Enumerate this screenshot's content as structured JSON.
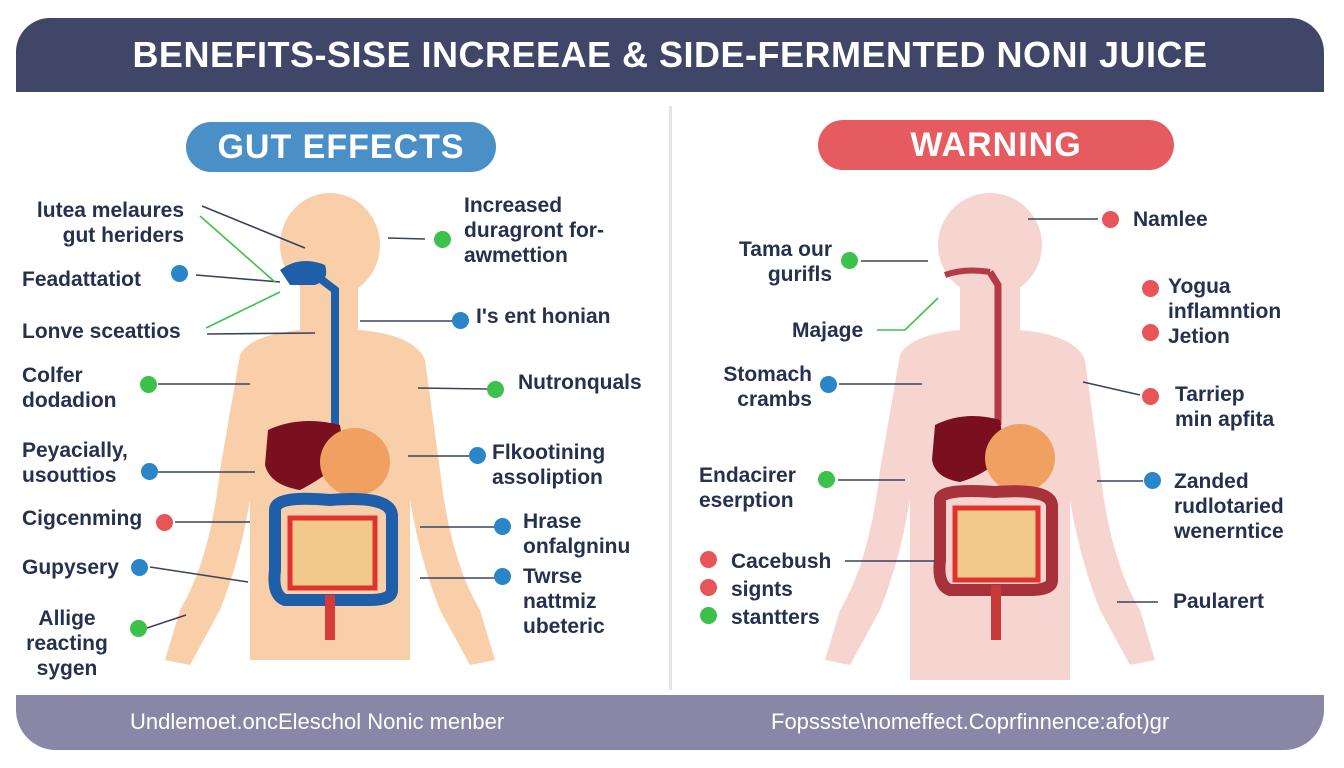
{
  "title": "BENEFITS-SISE INCREEAE & SIDE-FERMENTED NONI JUICE",
  "colors": {
    "title_bar": "#3f4668",
    "gut_pill": "#4a8fc6",
    "warning_pill": "#e55b5f",
    "footer": "#8a87a6",
    "badge_green": "#3cc24a",
    "badge_blue": "#2a86c8",
    "badge_red": "#e85558",
    "text": "#26304f"
  },
  "left_panel": {
    "heading": "GUT EFFECTS",
    "labels": [
      {
        "text": "lutea melaures\ngut heriders",
        "badge": ""
      },
      {
        "text": "Feadattatiot",
        "badge": "blue"
      },
      {
        "text": "Lonve sceattios",
        "badge": ""
      },
      {
        "text": "Colfer\ndodadion",
        "badge": "green"
      },
      {
        "text": "Peyacially,\nusouttios",
        "badge": "blue"
      },
      {
        "text": "Cigcenming",
        "badge": "red"
      },
      {
        "text": "Gupysery",
        "badge": "blue"
      },
      {
        "text": "Allige\nreacting\nsygen",
        "badge": "green"
      },
      {
        "text": "Increased\nduragront for-\nawmettion",
        "badge": "green"
      },
      {
        "text": "I's ent honian",
        "badge": "blue"
      },
      {
        "text": "Nutronquals",
        "badge": "green"
      },
      {
        "text": "Flkootining\nassoliption",
        "badge": "blue"
      },
      {
        "text": "Hrase\nonfalgninu",
        "badge": "blue"
      },
      {
        "text": "Twrse\nnattmiz\nubeteric",
        "badge": "blue"
      }
    ]
  },
  "right_panel": {
    "heading": "WARNING",
    "labels": [
      {
        "text": "Namlee",
        "badge": "red"
      },
      {
        "text": "Tama our\ngurifls",
        "badge": "green"
      },
      {
        "text": "Majage",
        "badge": ""
      },
      {
        "text": "Yogua\ninflamntion\nJetion",
        "badge": "red"
      },
      {
        "text": "Stomach\ncrambs",
        "badge": "blue"
      },
      {
        "text": "Tarriep\nmin apfita",
        "badge": "red"
      },
      {
        "text": "Endacirer\neserption",
        "badge": "green"
      },
      {
        "text": "Zanded\nrudlotaried\nwenerntice",
        "badge": "blue"
      },
      {
        "text": "Cacebush\nsignts\nstantters",
        "badge": "red"
      },
      {
        "text": "Paularert",
        "badge": ""
      }
    ]
  },
  "footer": {
    "left": "Undlemoet.oncEleschol Nonic menber",
    "right": "Fopssste\\nomeffect.Coprfinnence:afot)gr"
  }
}
